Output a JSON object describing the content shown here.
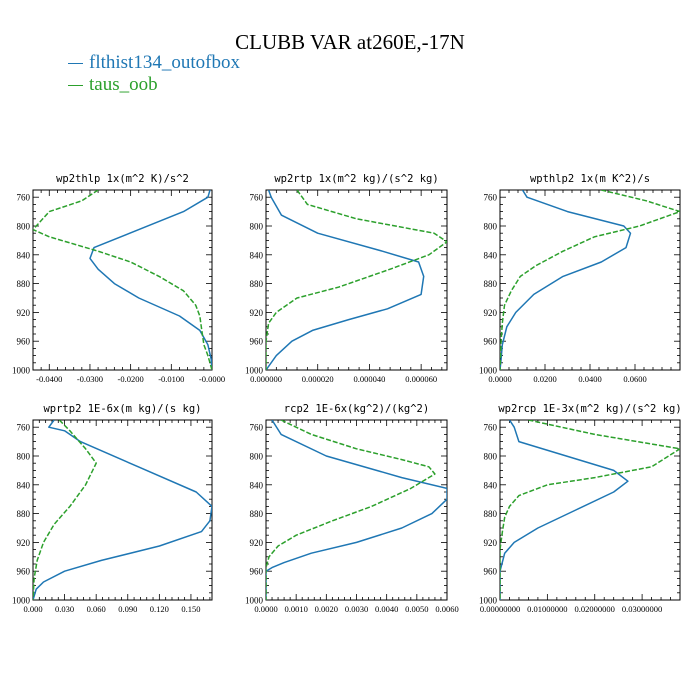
{
  "title": "CLUBB VAR at260E,-17N",
  "legend": [
    {
      "name": "flthist134_outofbox",
      "color": "#1f77b4",
      "dash": "solid"
    },
    {
      "name": "taus_oob",
      "color": "#2ca02c",
      "dash": "dashed"
    }
  ],
  "chart_data": [
    {
      "type": "line",
      "title": "wp2thlp 1x(m^2 K)/s^2",
      "ylim": [
        1000,
        750
      ],
      "yticks": [
        760,
        800,
        840,
        880,
        920,
        960,
        1000
      ],
      "xlim": [
        -0.044,
        0.0
      ],
      "xticks": [
        -0.04,
        -0.03,
        -0.02,
        -0.01,
        0.0
      ],
      "xtick_labels": [
        "-0.0400",
        "-0.0300",
        "-0.0200",
        "-0.0100",
        "-0.0000"
      ],
      "series": [
        {
          "name": "flthist134_outofbox",
          "points": [
            [
              -0.0005,
              750
            ],
            [
              -0.001,
              760
            ],
            [
              -0.007,
              780
            ],
            [
              -0.018,
              805
            ],
            [
              -0.029,
              830
            ],
            [
              -0.03,
              845
            ],
            [
              -0.028,
              860
            ],
            [
              -0.024,
              880
            ],
            [
              -0.018,
              900
            ],
            [
              -0.008,
              925
            ],
            [
              -0.003,
              945
            ],
            [
              -0.001,
              965
            ],
            [
              -0.0002,
              985
            ],
            [
              0.0,
              1000
            ]
          ]
        },
        {
          "name": "taus_oob",
          "points": [
            [
              -0.028,
              750
            ],
            [
              -0.032,
              765
            ],
            [
              -0.04,
              780
            ],
            [
              -0.044,
              805
            ],
            [
              -0.04,
              815
            ],
            [
              -0.028,
              835
            ],
            [
              -0.02,
              850
            ],
            [
              -0.013,
              870
            ],
            [
              -0.007,
              890
            ],
            [
              -0.004,
              910
            ],
            [
              -0.003,
              925
            ],
            [
              -0.0025,
              945
            ],
            [
              -0.002,
              965
            ],
            [
              -0.001,
              980
            ],
            [
              0.0,
              1000
            ]
          ]
        }
      ]
    },
    {
      "type": "line",
      "title": "wp2rtp 1x(m^2 kg)/(s^2 kg)",
      "ylim": [
        1000,
        750
      ],
      "yticks": [
        760,
        800,
        840,
        880,
        920,
        960,
        1000
      ],
      "xlim": [
        0.0,
        7e-05
      ],
      "xticks": [
        0.0,
        2e-05,
        4e-05,
        6e-05
      ],
      "xtick_labels": [
        "0.000000",
        "0.000020",
        "0.000040",
        "0.000060"
      ],
      "series": [
        {
          "name": "flthist134_outofbox",
          "points": [
            [
              1e-06,
              750
            ],
            [
              2e-06,
              760
            ],
            [
              6e-06,
              785
            ],
            [
              2e-05,
              810
            ],
            [
              4.5e-05,
              835
            ],
            [
              5.9e-05,
              850
            ],
            [
              6.1e-05,
              870
            ],
            [
              6e-05,
              895
            ],
            [
              4.7e-05,
              915
            ],
            [
              3.2e-05,
              930
            ],
            [
              1.8e-05,
              945
            ],
            [
              1e-05,
              960
            ],
            [
              4e-06,
              980
            ],
            [
              0.0,
              1000
            ]
          ]
        },
        {
          "name": "taus_oob",
          "points": [
            [
              1.2e-05,
              750
            ],
            [
              1.6e-05,
              770
            ],
            [
              3.5e-05,
              790
            ],
            [
              6.5e-05,
              810
            ],
            [
              7e-05,
              822
            ],
            [
              6.3e-05,
              840
            ],
            [
              4.8e-05,
              860
            ],
            [
              2.8e-05,
              885
            ],
            [
              1.2e-05,
              900
            ],
            [
              4e-06,
              920
            ],
            [
              1e-06,
              935
            ],
            [
              0.0,
              960
            ],
            [
              0.0,
              980
            ],
            [
              0.0,
              1000
            ]
          ]
        }
      ]
    },
    {
      "type": "line",
      "title": "wpthlp2 1x(m K^2)/s",
      "ylim": [
        1000,
        750
      ],
      "yticks": [
        760,
        800,
        840,
        880,
        920,
        960,
        1000
      ],
      "xlim": [
        0.0,
        0.08
      ],
      "xticks": [
        0.0,
        0.02,
        0.04,
        0.06
      ],
      "xtick_labels": [
        "0.0000",
        "0.0200",
        "0.0400",
        "0.0600"
      ],
      "series": [
        {
          "name": "flthist134_outofbox",
          "points": [
            [
              0.01,
              750
            ],
            [
              0.012,
              760
            ],
            [
              0.03,
              780
            ],
            [
              0.055,
              800
            ],
            [
              0.058,
              810
            ],
            [
              0.056,
              830
            ],
            [
              0.045,
              850
            ],
            [
              0.028,
              870
            ],
            [
              0.015,
              895
            ],
            [
              0.007,
              920
            ],
            [
              0.003,
              940
            ],
            [
              0.001,
              965
            ],
            [
              0.0005,
              985
            ],
            [
              0.0,
              1000
            ]
          ]
        },
        {
          "name": "taus_oob",
          "points": [
            [
              0.045,
              750
            ],
            [
              0.065,
              765
            ],
            [
              0.08,
              780
            ],
            [
              0.062,
              800
            ],
            [
              0.042,
              815
            ],
            [
              0.028,
              835
            ],
            [
              0.016,
              855
            ],
            [
              0.009,
              870
            ],
            [
              0.005,
              890
            ],
            [
              0.002,
              910
            ],
            [
              0.001,
              935
            ],
            [
              0.0005,
              960
            ],
            [
              0.0,
              1000
            ]
          ]
        }
      ]
    },
    {
      "type": "line",
      "title": "wprtp2 1E-6x(m kg)/(s kg)",
      "ylim": [
        1000,
        750
      ],
      "yticks": [
        760,
        800,
        840,
        880,
        920,
        960,
        1000
      ],
      "xlim": [
        0.0,
        0.17
      ],
      "xticks": [
        0.0,
        0.03,
        0.06,
        0.09,
        0.12,
        0.15
      ],
      "xtick_labels": [
        "0.000",
        "0.030",
        "0.060",
        "0.090",
        "0.120",
        "0.150"
      ],
      "series": [
        {
          "name": "flthist134_outofbox",
          "points": [
            [
              0.02,
              750
            ],
            [
              0.015,
              760
            ],
            [
              0.03,
              765
            ],
            [
              0.045,
              780
            ],
            [
              0.1,
              815
            ],
            [
              0.155,
              850
            ],
            [
              0.17,
              870
            ],
            [
              0.168,
              890
            ],
            [
              0.16,
              905
            ],
            [
              0.12,
              925
            ],
            [
              0.065,
              945
            ],
            [
              0.03,
              960
            ],
            [
              0.01,
              975
            ],
            [
              0.003,
              985
            ],
            [
              0.0,
              1000
            ]
          ]
        },
        {
          "name": "taus_oob",
          "points": [
            [
              0.025,
              750
            ],
            [
              0.035,
              765
            ],
            [
              0.05,
              790
            ],
            [
              0.06,
              810
            ],
            [
              0.05,
              840
            ],
            [
              0.035,
              870
            ],
            [
              0.02,
              895
            ],
            [
              0.01,
              920
            ],
            [
              0.004,
              945
            ],
            [
              0.001,
              970
            ],
            [
              0.0,
              1000
            ]
          ]
        }
      ]
    },
    {
      "type": "line",
      "title": "rcp2 1E-6x(kg^2)/(kg^2)",
      "ylim": [
        1000,
        750
      ],
      "yticks": [
        760,
        800,
        840,
        880,
        920,
        960,
        1000
      ],
      "xlim": [
        0.0,
        0.006
      ],
      "xticks": [
        0.0,
        0.001,
        0.002,
        0.003,
        0.004,
        0.005,
        0.006
      ],
      "xtick_labels": [
        "0.0000",
        "0.0010",
        "0.0020",
        "0.0030",
        "0.0040",
        "0.0050",
        "0.0060"
      ],
      "series": [
        {
          "name": "flthist134_outofbox",
          "points": [
            [
              0.0002,
              750
            ],
            [
              0.0005,
              770
            ],
            [
              0.002,
              800
            ],
            [
              0.0045,
              830
            ],
            [
              0.006,
              845
            ],
            [
              0.006,
              860
            ],
            [
              0.0055,
              880
            ],
            [
              0.0045,
              900
            ],
            [
              0.003,
              920
            ],
            [
              0.0015,
              935
            ],
            [
              0.0006,
              948
            ],
            [
              0.0002,
              955
            ],
            [
              0.0,
              960
            ],
            [
              0.0,
              1000
            ]
          ]
        },
        {
          "name": "taus_oob",
          "points": [
            [
              0.0005,
              750
            ],
            [
              0.0015,
              770
            ],
            [
              0.003,
              790
            ],
            [
              0.0045,
              805
            ],
            [
              0.0054,
              815
            ],
            [
              0.0056,
              825
            ],
            [
              0.0048,
              845
            ],
            [
              0.0035,
              870
            ],
            [
              0.0022,
              890
            ],
            [
              0.001,
              910
            ],
            [
              0.0004,
              925
            ],
            [
              0.0001,
              940
            ],
            [
              0.0,
              955
            ],
            [
              0.0,
              1000
            ]
          ]
        }
      ]
    },
    {
      "type": "line",
      "title": "wp2rcp 1E-3x(m^2 kg)/(s^2 kg)",
      "ylim": [
        1000,
        750
      ],
      "yticks": [
        760,
        800,
        840,
        880,
        920,
        960,
        1000
      ],
      "xlim": [
        0.0,
        0.038
      ],
      "xticks": [
        0.0,
        0.01,
        0.02,
        0.03
      ],
      "xtick_labels": [
        "0.00000000",
        "0.01000000",
        "0.02000000",
        "0.03000000"
      ],
      "series": [
        {
          "name": "flthist134_outofbox",
          "points": [
            [
              0.002,
              750
            ],
            [
              0.003,
              760
            ],
            [
              0.004,
              780
            ],
            [
              0.014,
              800
            ],
            [
              0.024,
              820
            ],
            [
              0.027,
              835
            ],
            [
              0.024,
              850
            ],
            [
              0.016,
              875
            ],
            [
              0.008,
              900
            ],
            [
              0.003,
              920
            ],
            [
              0.001,
              935
            ],
            [
              0.0,
              960
            ],
            [
              0.0,
              1000
            ]
          ]
        },
        {
          "name": "taus_oob",
          "points": [
            [
              0.006,
              750
            ],
            [
              0.02,
              770
            ],
            [
              0.038,
              790
            ],
            [
              0.032,
              815
            ],
            [
              0.02,
              830
            ],
            [
              0.01,
              840
            ],
            [
              0.004,
              855
            ],
            [
              0.002,
              870
            ],
            [
              0.001,
              885
            ],
            [
              0.0005,
              905
            ],
            [
              0.0,
              930
            ],
            [
              0.0,
              1000
            ]
          ]
        }
      ]
    }
  ]
}
